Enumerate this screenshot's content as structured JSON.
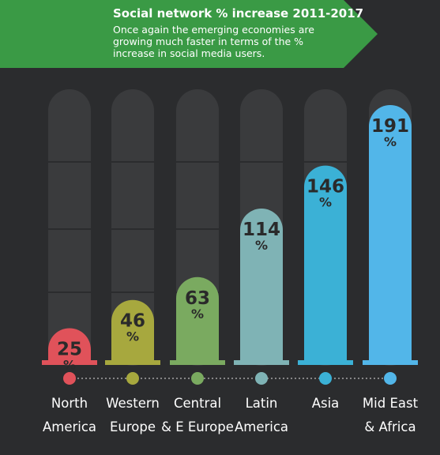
{
  "header": {
    "title": "Social network % increase 2011-2017",
    "subtitle": "Once again the emerging economies are growing much faster in terms of the % increase in social media users.",
    "banner_color": "#3a9a45"
  },
  "chart_data": {
    "type": "bar",
    "title": "Social network % increase 2011-2017",
    "categories": [
      [
        "North",
        "America"
      ],
      [
        "Western",
        "Europe"
      ],
      [
        "Central",
        "& E Europe"
      ],
      [
        "Latin",
        "America"
      ],
      [
        "Asia"
      ],
      [
        "Mid East",
        "& Africa"
      ]
    ],
    "values": [
      25,
      46,
      63,
      114,
      146,
      191
    ],
    "value_suffix": "%",
    "ylim": [
      0,
      191
    ],
    "colors": [
      "#e0525a",
      "#a7a83e",
      "#7aaa60",
      "#7fb3b5",
      "#3bb1d6",
      "#52b6e9"
    ],
    "track_color": "#3a3b3d",
    "grid": true
  }
}
